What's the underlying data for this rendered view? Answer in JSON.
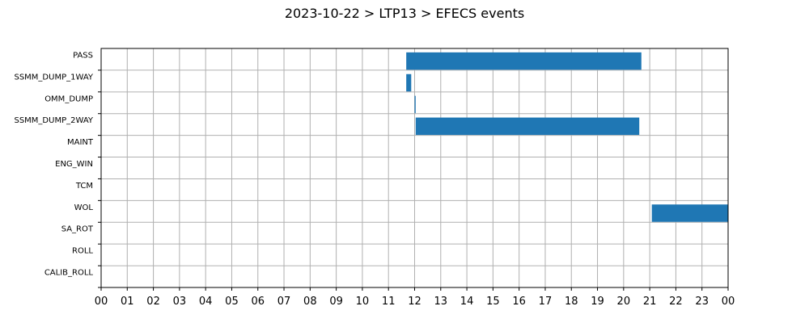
{
  "chart_data": {
    "type": "bar",
    "orientation": "horizontal-timeline",
    "title": "2023-10-22 > LTP13 > EFECS events",
    "xlabel": "",
    "ylabel": "",
    "xlim": [
      0,
      24
    ],
    "x_tick_labels": [
      "00",
      "01",
      "02",
      "03",
      "04",
      "05",
      "06",
      "07",
      "08",
      "09",
      "10",
      "11",
      "12",
      "13",
      "14",
      "15",
      "16",
      "17",
      "18",
      "19",
      "20",
      "21",
      "22",
      "23",
      "00"
    ],
    "categories": [
      "PASS",
      "SSMM_DUMP_1WAY",
      "OMM_DUMP",
      "SSMM_DUMP_2WAY",
      "MAINT",
      "ENG_WIN",
      "TCM",
      "WOL",
      "SA_ROT",
      "ROLL",
      "CALIB_ROLL"
    ],
    "grid": true,
    "bar_color": "#1f77b4",
    "events": [
      {
        "category": "PASS",
        "start": 11.68,
        "end": 20.68
      },
      {
        "category": "SSMM_DUMP_1WAY",
        "start": 11.68,
        "end": 11.87
      },
      {
        "category": "OMM_DUMP",
        "start": 12.0,
        "end": 12.04
      },
      {
        "category": "SSMM_DUMP_2WAY",
        "start": 12.04,
        "end": 20.6
      },
      {
        "category": "WOL",
        "start": 21.08,
        "end": 24.0
      }
    ]
  }
}
